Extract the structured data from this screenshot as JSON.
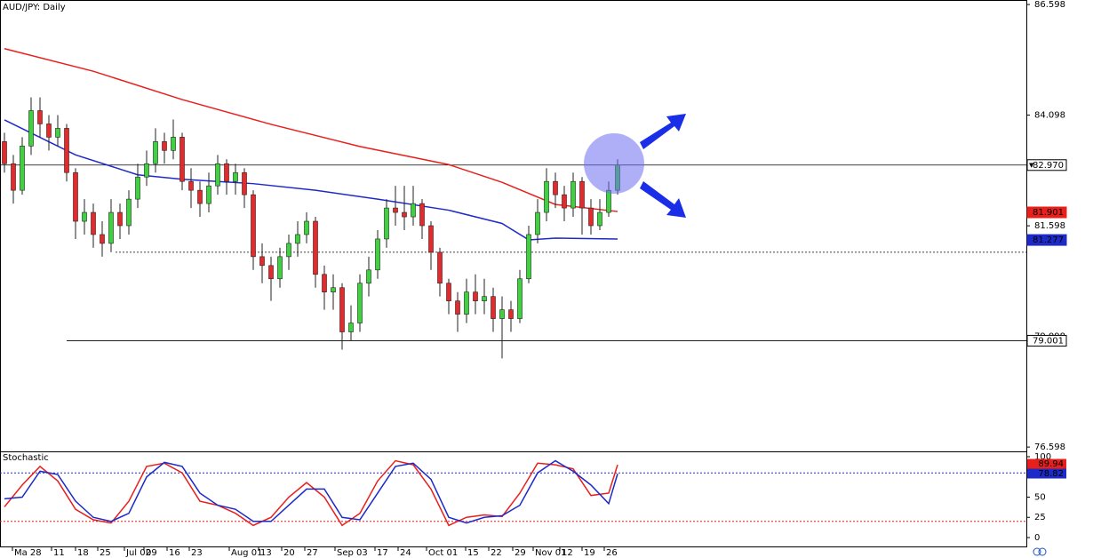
{
  "chart_data": [
    {
      "type": "candlestick",
      "title": "AUD/JPY: Daily",
      "open": [
        83.5,
        83.0,
        82.4,
        83.4,
        84.2,
        83.9,
        83.6,
        83.8,
        82.8,
        81.7,
        81.9,
        81.4,
        81.2,
        81.9,
        81.6,
        82.2,
        82.7,
        83.0,
        83.5,
        83.3,
        83.6,
        82.6,
        82.4,
        82.1,
        82.5,
        83.0,
        82.6,
        82.8,
        82.3,
        80.9,
        80.7,
        80.4,
        80.9,
        81.2,
        81.4,
        81.7,
        80.5,
        80.1,
        80.2,
        79.2,
        79.4,
        80.3,
        80.6,
        81.3,
        82.0,
        81.9,
        81.8,
        82.1,
        81.6,
        81.0,
        80.3,
        79.9,
        79.6,
        80.1,
        79.9,
        80.0,
        79.5,
        79.7,
        79.5,
        80.4,
        81.4,
        81.9,
        82.6,
        82.3,
        82.0,
        82.6,
        82.0,
        81.6,
        81.9,
        82.4
      ],
      "high": [
        83.7,
        83.2,
        83.6,
        84.5,
        84.5,
        84.1,
        84.1,
        83.9,
        82.9,
        82.2,
        82.1,
        81.7,
        82.2,
        82.1,
        82.4,
        83.0,
        83.3,
        83.8,
        83.7,
        84.0,
        83.7,
        82.9,
        82.6,
        82.8,
        83.2,
        83.1,
        83.0,
        82.9,
        82.4,
        81.2,
        80.9,
        81.1,
        81.4,
        81.7,
        81.9,
        81.8,
        80.7,
        80.5,
        80.3,
        79.8,
        80.5,
        80.9,
        81.5,
        82.2,
        82.5,
        82.5,
        82.5,
        82.2,
        81.7,
        81.1,
        80.4,
        80.1,
        80.4,
        80.5,
        80.4,
        80.2,
        80.0,
        79.9,
        80.6,
        81.6,
        82.2,
        82.9,
        82.8,
        82.5,
        82.8,
        82.7,
        82.2,
        82.2,
        82.6,
        83.1
      ],
      "low": [
        82.8,
        82.1,
        82.3,
        83.2,
        83.6,
        83.3,
        83.4,
        82.6,
        81.3,
        81.4,
        81.1,
        80.9,
        81.0,
        81.3,
        81.4,
        82.0,
        82.5,
        82.8,
        83.0,
        83.1,
        82.4,
        82.0,
        81.8,
        81.9,
        82.3,
        82.3,
        82.3,
        82.0,
        80.6,
        80.3,
        79.9,
        80.2,
        80.6,
        80.9,
        81.2,
        80.2,
        79.7,
        79.7,
        78.8,
        79.0,
        79.2,
        80.0,
        80.4,
        81.1,
        81.6,
        81.5,
        81.6,
        81.3,
        80.6,
        80.0,
        79.6,
        79.2,
        79.4,
        79.6,
        79.6,
        79.2,
        78.6,
        79.2,
        79.4,
        80.3,
        81.2,
        81.7,
        82.0,
        81.7,
        81.8,
        81.4,
        81.4,
        81.5,
        81.8,
        82.3
      ],
      "close": [
        83.0,
        82.4,
        83.4,
        84.2,
        83.9,
        83.6,
        83.8,
        82.8,
        81.7,
        81.9,
        81.4,
        81.2,
        81.9,
        81.6,
        82.2,
        82.7,
        83.0,
        83.5,
        83.3,
        83.6,
        82.6,
        82.4,
        82.1,
        82.5,
        83.0,
        82.6,
        82.8,
        82.3,
        80.9,
        80.7,
        80.4,
        80.9,
        81.2,
        81.4,
        81.7,
        80.5,
        80.1,
        80.2,
        79.2,
        79.4,
        80.3,
        80.6,
        81.3,
        82.0,
        81.9,
        81.8,
        82.1,
        81.6,
        81.0,
        80.3,
        79.9,
        79.6,
        80.1,
        79.9,
        80.0,
        79.5,
        79.7,
        79.5,
        80.4,
        81.4,
        81.9,
        82.6,
        82.3,
        82.0,
        82.6,
        82.0,
        81.6,
        81.9,
        82.4,
        82.97
      ],
      "up_color": "#3cd43c",
      "down_color": "#e8282a",
      "series": [
        {
          "color": "#e8201c",
          "x": [
            0,
            10,
            20,
            30,
            40,
            50,
            56,
            62,
            69
          ],
          "values": [
            85.6,
            85.09,
            84.45,
            83.89,
            83.39,
            82.98,
            82.58,
            82.08,
            81.92
          ]
        },
        {
          "color": "#1e2ac8",
          "x": [
            0,
            8,
            15,
            20,
            28,
            35,
            42,
            50,
            56,
            59,
            62,
            69
          ],
          "values": [
            83.99,
            83.2,
            82.75,
            82.65,
            82.55,
            82.4,
            82.2,
            81.95,
            81.65,
            81.28,
            81.32,
            81.3
          ]
        }
      ],
      "hlines": [
        {
          "value": 82.97,
          "start": -0.5,
          "style": "solid"
        },
        {
          "value": 81.0,
          "start": 12.5,
          "style": "dotted"
        },
        {
          "value": 79.001,
          "start": 7,
          "style": "solid"
        }
      ],
      "price_tags": [
        {
          "value": 82.97,
          "label": "82.970",
          "color": "#ffffff",
          "text_color": "#000000",
          "marker": "▼"
        },
        {
          "value": 81.901,
          "label": "81.901",
          "color": "#e8201c",
          "text_color": "#ffffff"
        },
        {
          "value": 81.277,
          "label": "81.277",
          "color": "#1e2ac8",
          "text_color": "#ffffff"
        },
        {
          "value": 79.001,
          "label": "79.001",
          "color": "#ffffff",
          "text_color": "#000000"
        }
      ],
      "xlim": [
        -0.5,
        115
      ],
      "ylim": [
        76.5,
        86.7
      ],
      "yticks": [
        {
          "value": 76.598,
          "label": "76.598"
        },
        {
          "value": 79.098,
          "label": "79.098"
        },
        {
          "value": 81.598,
          "label": "81.598"
        },
        {
          "value": 84.098,
          "label": "84.098"
        },
        {
          "value": 86.598,
          "label": "86.598"
        }
      ],
      "xticks": [
        {
          "value": 0.9,
          "label": "Ma 28"
        },
        {
          "value": 5.3,
          "label": "11"
        },
        {
          "value": 8,
          "label": "18"
        },
        {
          "value": 10.5,
          "label": "25"
        },
        {
          "value": 13.5,
          "label": "Jul 02"
        },
        {
          "value": 15.7,
          "label": "09"
        },
        {
          "value": 18.3,
          "label": "16"
        },
        {
          "value": 20.8,
          "label": "23"
        },
        {
          "value": 25.3,
          "label": "Aug 01"
        },
        {
          "value": 28.6,
          "label": "13"
        },
        {
          "value": 31.2,
          "label": "20"
        },
        {
          "value": 33.8,
          "label": "27"
        },
        {
          "value": 37.2,
          "label": "Sep 03"
        },
        {
          "value": 41.7,
          "label": "17"
        },
        {
          "value": 44.3,
          "label": "24"
        },
        {
          "value": 47.5,
          "label": "Oct 01"
        },
        {
          "value": 51.9,
          "label": "15"
        },
        {
          "value": 54.5,
          "label": "22"
        },
        {
          "value": 57.2,
          "label": "29"
        },
        {
          "value": 59.5,
          "label": "Nov 01"
        },
        {
          "value": 62.5,
          "label": "12"
        },
        {
          "value": 65,
          "label": "19"
        },
        {
          "value": 67.5,
          "label": "26"
        }
      ]
    },
    {
      "type": "line",
      "title": "Stochastic",
      "series": [
        {
          "color": "#e8201c",
          "x": [
            0,
            2,
            4,
            6,
            8,
            10,
            12,
            14,
            16,
            18,
            20,
            22,
            24,
            26,
            28,
            30,
            32,
            34,
            36,
            38,
            40,
            42,
            44,
            46,
            48,
            50,
            52,
            54,
            56,
            58,
            60,
            62,
            64,
            66,
            68,
            69
          ],
          "values": [
            38,
            65,
            88,
            70,
            35,
            22,
            18,
            45,
            88,
            92,
            80,
            45,
            40,
            30,
            15,
            25,
            50,
            68,
            50,
            15,
            30,
            70,
            95,
            90,
            60,
            15,
            25,
            28,
            26,
            55,
            92,
            90,
            85,
            52,
            55,
            89.94
          ]
        },
        {
          "color": "#1e2ac8",
          "x": [
            0,
            2,
            4,
            6,
            8,
            10,
            12,
            14,
            16,
            18,
            20,
            22,
            24,
            26,
            28,
            30,
            32,
            34,
            36,
            38,
            40,
            42,
            44,
            46,
            48,
            50,
            52,
            54,
            56,
            58,
            60,
            62,
            64,
            66,
            68,
            69
          ],
          "values": [
            48,
            50,
            82,
            78,
            45,
            25,
            20,
            30,
            75,
            93,
            88,
            55,
            40,
            35,
            20,
            20,
            40,
            60,
            60,
            25,
            22,
            55,
            88,
            92,
            72,
            25,
            18,
            25,
            27,
            40,
            80,
            95,
            82,
            65,
            42,
            78.82
          ]
        }
      ],
      "levels": [
        {
          "value": 80,
          "color": "#1e2ac8"
        },
        {
          "value": 20,
          "color": "#e8201c"
        }
      ],
      "xlim": [
        -0.5,
        115
      ],
      "ylim": [
        -11,
        106.6
      ],
      "yticks": [
        0,
        25,
        50,
        100
      ]
    }
  ]
}
